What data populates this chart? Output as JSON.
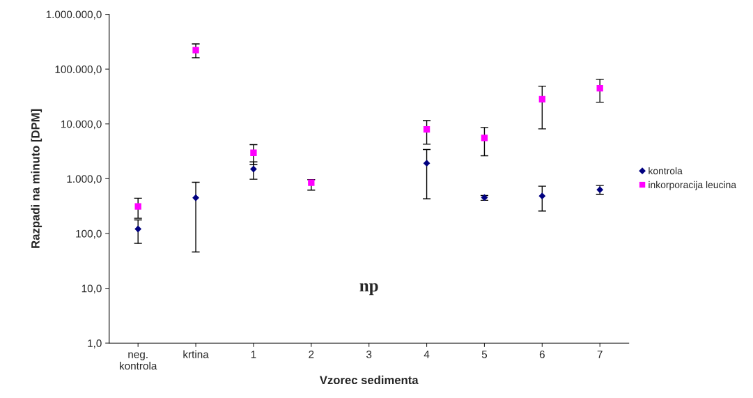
{
  "chart_data": {
    "type": "scatter",
    "xlabel": "Vzorec sedimenta",
    "ylabel": "Razpadi na minuto [DPM]",
    "categories": [
      "neg.\nkontrola",
      "krtina",
      "1",
      "2",
      "3",
      "4",
      "5",
      "6",
      "7"
    ],
    "series": [
      {
        "name": "kontrola",
        "color": "#000080",
        "marker": "diamond",
        "values": [
          121,
          449,
          1500,
          null,
          null,
          1915,
          453,
          484,
          630
        ],
        "errors": [
          [
            66,
            177
          ],
          [
            46,
            861
          ],
          [
            977,
            2030
          ],
          null,
          null,
          [
            430,
            3410
          ],
          [
            403,
            494
          ],
          [
            257,
            729
          ],
          [
            519,
            751
          ]
        ]
      },
      {
        "name": "inkorporacija leucina",
        "color": "#ff00ff",
        "marker": "square",
        "values": [
          312,
          223000,
          2970,
          844,
          null,
          7960,
          5550,
          28200,
          44700
        ],
        "errors": [
          [
            190,
            440
          ],
          [
            161000,
            288000
          ],
          [
            1806,
            4180
          ],
          [
            620,
            960
          ],
          null,
          [
            4270,
            11500
          ],
          [
            2620,
            8610
          ],
          [
            8130,
            48800
          ],
          [
            24900,
            64900
          ]
        ]
      }
    ],
    "log": "y",
    "ylim": [
      1,
      1000000
    ],
    "yticks": [
      {
        "value": 1,
        "label": "1,0"
      },
      {
        "value": 10,
        "label": "10,0"
      },
      {
        "value": 100,
        "label": "100,0"
      },
      {
        "value": 1000,
        "label": "1.000,0"
      },
      {
        "value": 10000,
        "label": "10.000,0"
      },
      {
        "value": 100000,
        "label": "100.000,0"
      },
      {
        "value": 1000000,
        "label": "1.000.000,0"
      }
    ],
    "annotations": [
      "np"
    ],
    "legend": "right",
    "grid": false
  }
}
